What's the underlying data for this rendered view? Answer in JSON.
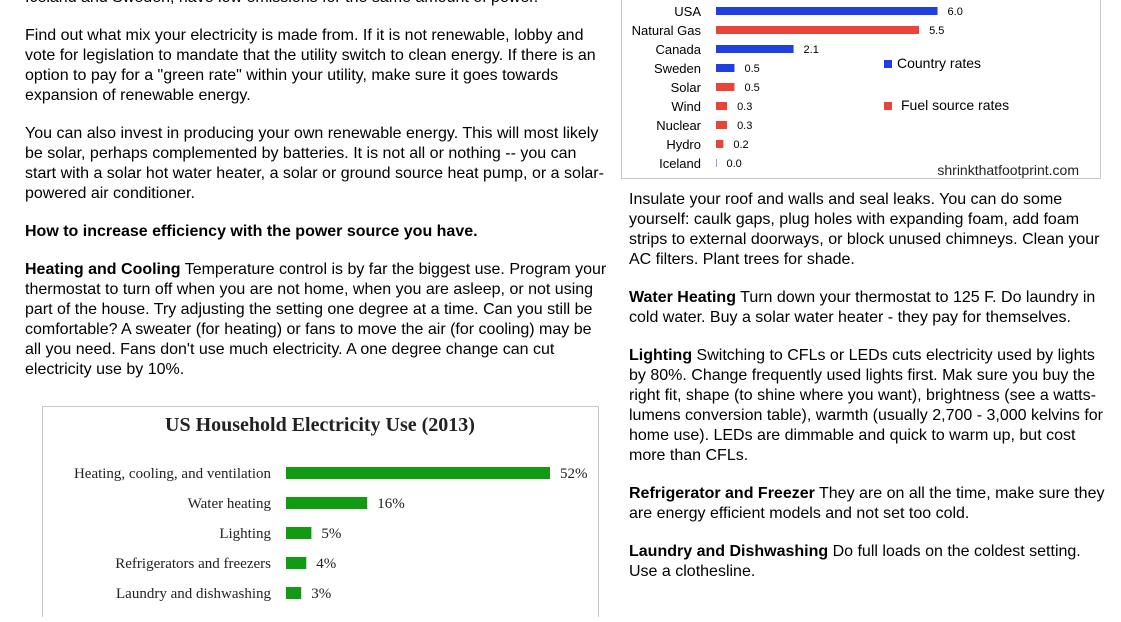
{
  "left": {
    "intro_tail": "Iceland and Sweden, have low emissions for the same amount of power.",
    "para_mix": "Find out what mix your electricity is made from.  If it is not renewable, lobby and vote for legislation to mandate that the utility switch to clean energy.  If there is an option to pay for a \"green rate\" within your utility, make sure it goes towards expansion of renewable energy.",
    "para_invest": "You can also invest in producing your own renewable energy.  This will most likely be solar, perhaps complemented by batteries.  It is not all or nothing -- you can start with a solar hot water heater, a solar or ground source heat pump, or a solar-powered air conditioner.",
    "efficiency_heading": "How to increase efficiency with the power source you have.",
    "heating_title": "Heating and Cooling",
    "heating_text": "  Temperature control is by far the biggest use.  Program your thermostat to turn off when you are not home, when you are asleep, or not using part of the house.  Try adjusting the setting one degree at a time.  Can you still be comfortable?  A sweater (for heating) or fans to move the air (for cooling) may be all you need.  Fans don't use much electricity.  A one degree change can cut electricity use by 10%."
  },
  "right": {
    "insulate_text": "Insulate your roof and walls and seal leaks.  You can do some yourself: caulk gaps, plug holes with expanding foam, add foam strips to external doorways, or block unused chimneys.  Clean your AC filters.  Plant trees for shade.",
    "water_title": "Water Heating",
    "water_text": "  Turn down your thermostat to 125 F.  Do laundry in cold water.  Buy a solar water heater - they pay for themselves.",
    "lighting_title": "Lighting",
    "lighting_text": "  Switching to CFLs or LEDs cuts electricity used by lights by 80%.  Change frequently used lights first.  Mak sure you buy the right fit, shape (to shine where you want), brightness (see a watts-lumens conversion table), warmth (usually 2,700 - 3,000 kelvins for home use).   LEDs are dimmable and quick to warm up, but cost more than CFLs.",
    "fridge_title": "Refrigerator and Freezer",
    "fridge_text": "   They are on all the time, make sure they are energy efficient models and not set too cold.",
    "laundry_title": "Laundry and Dishwashing",
    "laundry_text": "  Do full loads on the coldest setting.  Use a clothesline."
  },
  "chart_data": [
    {
      "type": "bar",
      "orientation": "horizontal",
      "categories": [
        "USA",
        "Natural Gas",
        "Canada",
        "Sweden",
        "Solar",
        "Wind",
        "Nuclear",
        "Hydro",
        "Iceland"
      ],
      "values": [
        6.0,
        5.5,
        2.1,
        0.5,
        0.5,
        0.3,
        0.3,
        0.2,
        0.0
      ],
      "value_labels": [
        "6.0",
        "5.5",
        "2.1",
        "0.5",
        "0.5",
        "0.3",
        "0.3",
        "0.2",
        "0.0"
      ],
      "groups": [
        "country",
        "fuel",
        "country",
        "country",
        "fuel",
        "fuel",
        "fuel",
        "fuel",
        "country"
      ],
      "legend": [
        {
          "key": "country",
          "label": "Country rates",
          "color": "#1f3fe0"
        },
        {
          "key": "fuel",
          "label": "Fuel source rates",
          "color": "#e8443a"
        }
      ],
      "legend_position": "right",
      "source": "shrinkthatfootprint.com",
      "xlim": [
        0,
        6.5
      ]
    },
    {
      "type": "bar",
      "orientation": "horizontal",
      "title": "US Household Electricity Use (2013)",
      "categories": [
        "Heating, cooling, and ventilation",
        "Water heating",
        "Lighting",
        "Refrigerators and freezers",
        "Laundry and dishwashing"
      ],
      "values": [
        52,
        16,
        5,
        4,
        3
      ],
      "value_labels": [
        "52%",
        "16%",
        "5%",
        "4%",
        "3%"
      ],
      "color": "#129a12",
      "xlim": [
        0,
        52
      ]
    }
  ]
}
